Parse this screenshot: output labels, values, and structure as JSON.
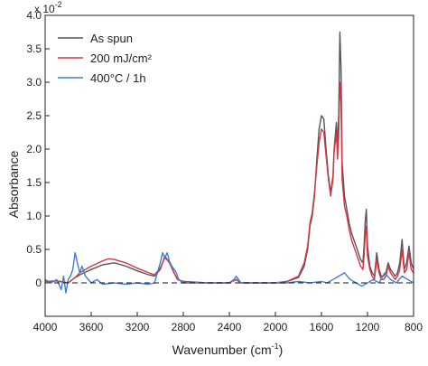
{
  "chart_data": {
    "type": "line",
    "title": "",
    "xlabel_main": "Wavenumber (cm",
    "xlabel_sup": "-1",
    "xlabel_close": ")",
    "ylabel": "Absorbance",
    "yscale_base": "x 10",
    "yscale_exp": "-2",
    "xlim": [
      4000,
      800
    ],
    "ylim": [
      -0.5,
      4.0
    ],
    "x_reversed": true,
    "x_ticks": [
      4000,
      3600,
      3200,
      2800,
      2400,
      2000,
      1600,
      1200,
      800
    ],
    "x_tick_labels": [
      "4000",
      "3600",
      "3200",
      "2800",
      "2400",
      "2000",
      "1600",
      "1200",
      "800"
    ],
    "y_ticks": [
      0,
      0.5,
      1.0,
      1.5,
      2.0,
      2.5,
      3.0,
      3.5,
      4.0
    ],
    "y_tick_labels": [
      "0",
      "0.5",
      "1.0",
      "1.5",
      "2.0",
      "2.5",
      "3.0",
      "3.5",
      "4.0"
    ],
    "baseline": 0,
    "legend": {
      "position": "top-left"
    },
    "grid": false,
    "series": [
      {
        "name": "As spun",
        "color": "#555555",
        "x": [
          4000,
          3900,
          3800,
          3740,
          3700,
          3600,
          3500,
          3400,
          3300,
          3200,
          3100,
          3050,
          3000,
          2960,
          2920,
          2880,
          2850,
          2800,
          2600,
          2400,
          2340,
          2300,
          2200,
          2000,
          1900,
          1800,
          1750,
          1720,
          1700,
          1680,
          1660,
          1640,
          1620,
          1600,
          1580,
          1560,
          1540,
          1520,
          1500,
          1490,
          1470,
          1460,
          1450,
          1440,
          1430,
          1420,
          1400,
          1380,
          1360,
          1340,
          1320,
          1300,
          1280,
          1260,
          1240,
          1230,
          1220,
          1210,
          1200,
          1180,
          1160,
          1140,
          1120,
          1100,
          1080,
          1060,
          1040,
          1020,
          1000,
          980,
          960,
          940,
          920,
          900,
          880,
          860,
          840,
          820,
          800
        ],
        "y": [
          0.02,
          0.03,
          0.0,
          0.08,
          0.12,
          0.2,
          0.27,
          0.3,
          0.25,
          0.18,
          0.12,
          0.1,
          0.2,
          0.4,
          0.3,
          0.15,
          0.05,
          0.02,
          0.0,
          0.0,
          0.05,
          0.0,
          0.0,
          0.0,
          0.02,
          0.08,
          0.25,
          0.5,
          0.85,
          1.0,
          1.3,
          1.85,
          2.3,
          2.5,
          2.45,
          2.0,
          1.6,
          1.35,
          1.6,
          2.0,
          2.4,
          2.0,
          2.5,
          3.75,
          3.2,
          1.8,
          1.3,
          1.1,
          0.9,
          0.75,
          0.65,
          0.55,
          0.45,
          0.35,
          0.3,
          0.55,
          0.9,
          1.1,
          0.55,
          0.25,
          0.15,
          0.1,
          0.45,
          0.2,
          0.1,
          0.1,
          0.15,
          0.3,
          0.2,
          0.15,
          0.1,
          0.15,
          0.3,
          0.65,
          0.2,
          0.3,
          0.55,
          0.3,
          0.2
        ]
      },
      {
        "name": "200 mJ/cm²",
        "color": "#d93545",
        "x": [
          4000,
          3900,
          3800,
          3740,
          3700,
          3600,
          3500,
          3450,
          3400,
          3300,
          3200,
          3100,
          3050,
          3000,
          2960,
          2920,
          2880,
          2850,
          2800,
          2600,
          2400,
          2340,
          2300,
          2200,
          2000,
          1900,
          1800,
          1750,
          1720,
          1700,
          1680,
          1660,
          1640,
          1620,
          1600,
          1580,
          1560,
          1540,
          1520,
          1500,
          1490,
          1470,
          1460,
          1450,
          1440,
          1430,
          1420,
          1400,
          1380,
          1360,
          1340,
          1320,
          1300,
          1280,
          1260,
          1240,
          1230,
          1220,
          1210,
          1200,
          1180,
          1160,
          1140,
          1120,
          1100,
          1080,
          1060,
          1040,
          1020,
          1000,
          980,
          960,
          940,
          920,
          900,
          880,
          860,
          840,
          820,
          800
        ],
        "y": [
          0.02,
          0.03,
          0.0,
          0.08,
          0.15,
          0.25,
          0.33,
          0.36,
          0.35,
          0.3,
          0.22,
          0.15,
          0.12,
          0.22,
          0.38,
          0.3,
          0.15,
          0.05,
          0.02,
          0.0,
          0.0,
          0.05,
          0.0,
          0.0,
          0.0,
          0.02,
          0.1,
          0.3,
          0.55,
          0.9,
          1.05,
          1.35,
          1.75,
          2.1,
          2.3,
          2.25,
          1.9,
          1.55,
          1.3,
          1.55,
          1.95,
          2.25,
          1.85,
          2.2,
          3.0,
          2.7,
          1.55,
          1.15,
          1.0,
          0.8,
          0.65,
          0.55,
          0.45,
          0.35,
          0.25,
          0.2,
          0.4,
          0.7,
          0.85,
          0.4,
          0.2,
          0.1,
          0.05,
          0.35,
          0.15,
          0.05,
          0.05,
          0.1,
          0.25,
          0.15,
          0.1,
          0.05,
          0.1,
          0.2,
          0.5,
          0.15,
          0.2,
          0.45,
          0.2,
          0.15
        ]
      },
      {
        "name": "400°C / 1h",
        "color": "#3d7fd6",
        "x": [
          4000,
          3950,
          3900,
          3860,
          3840,
          3820,
          3800,
          3780,
          3760,
          3740,
          3720,
          3700,
          3680,
          3650,
          3600,
          3550,
          3500,
          3400,
          3300,
          3200,
          3100,
          3050,
          3000,
          2980,
          2960,
          2940,
          2920,
          2900,
          2880,
          2860,
          2840,
          2800,
          2700,
          2600,
          2500,
          2400,
          2360,
          2340,
          2320,
          2300,
          2200,
          2100,
          2000,
          1900,
          1800,
          1700,
          1600,
          1550,
          1500,
          1450,
          1400,
          1350,
          1300,
          1250,
          1200,
          1150,
          1100,
          1050,
          1000,
          950,
          900,
          850,
          800
        ],
        "y": [
          0.05,
          0.0,
          0.05,
          -0.1,
          0.1,
          -0.15,
          0.05,
          0.1,
          0.2,
          0.45,
          0.3,
          0.15,
          0.25,
          0.1,
          0.0,
          0.05,
          -0.02,
          0.0,
          -0.02,
          0.0,
          -0.02,
          0.0,
          0.3,
          0.45,
          0.38,
          0.45,
          0.32,
          0.25,
          0.2,
          0.15,
          0.05,
          0.0,
          0.0,
          0.0,
          0.0,
          0.0,
          0.05,
          0.1,
          0.05,
          0.0,
          0.0,
          0.0,
          0.0,
          0.0,
          0.02,
          0.0,
          0.02,
          0.0,
          0.05,
          0.1,
          0.15,
          0.05,
          0.0,
          -0.05,
          0.0,
          0.05,
          0.0,
          0.15,
          0.05,
          0.0,
          0.1,
          0.05,
          0.0
        ]
      }
    ]
  }
}
